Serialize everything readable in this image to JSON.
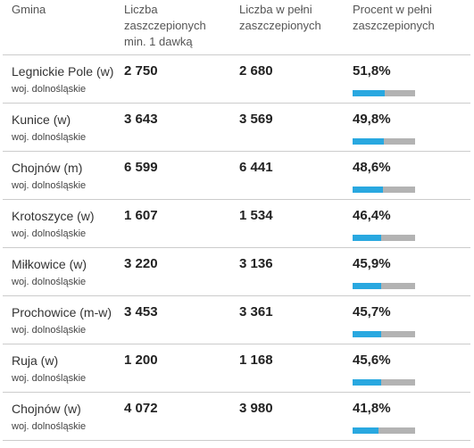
{
  "headers": {
    "gmina": "Gmina",
    "dose1": "Liczba\nzaszczepionych\nmin. 1 dawką",
    "full": "Liczba w pełni\nzaszczepionych",
    "percent": "Procent w pełni\nzaszczepionych"
  },
  "colors": {
    "bar_fill": "#29a8e0",
    "bar_track": "#b3b3b3"
  },
  "rows": [
    {
      "name": "Legnickie Pole (w)",
      "region": "woj. dolnośląskie",
      "dose1": "2 750",
      "full": "2 680",
      "percent": "51,8%",
      "fraction": 0.518
    },
    {
      "name": "Kunice (w)",
      "region": "woj. dolnośląskie",
      "dose1": "3 643",
      "full": "3 569",
      "percent": "49,8%",
      "fraction": 0.498
    },
    {
      "name": "Chojnów (m)",
      "region": "woj. dolnośląskie",
      "dose1": "6 599",
      "full": "6 441",
      "percent": "48,6%",
      "fraction": 0.486
    },
    {
      "name": "Krotoszyce (w)",
      "region": "woj. dolnośląskie",
      "dose1": "1 607",
      "full": "1 534",
      "percent": "46,4%",
      "fraction": 0.464
    },
    {
      "name": "Miłkowice (w)",
      "region": "woj. dolnośląskie",
      "dose1": "3 220",
      "full": "3 136",
      "percent": "45,9%",
      "fraction": 0.459
    },
    {
      "name": "Prochowice (m-w)",
      "region": "woj. dolnośląskie",
      "dose1": "3 453",
      "full": "3 361",
      "percent": "45,7%",
      "fraction": 0.457
    },
    {
      "name": "Ruja (w)",
      "region": "woj. dolnośląskie",
      "dose1": "1 200",
      "full": "1 168",
      "percent": "45,6%",
      "fraction": 0.456
    },
    {
      "name": "Chojnów (w)",
      "region": "woj. dolnośląskie",
      "dose1": "4 072",
      "full": "3 980",
      "percent": "41,8%",
      "fraction": 0.418
    }
  ]
}
